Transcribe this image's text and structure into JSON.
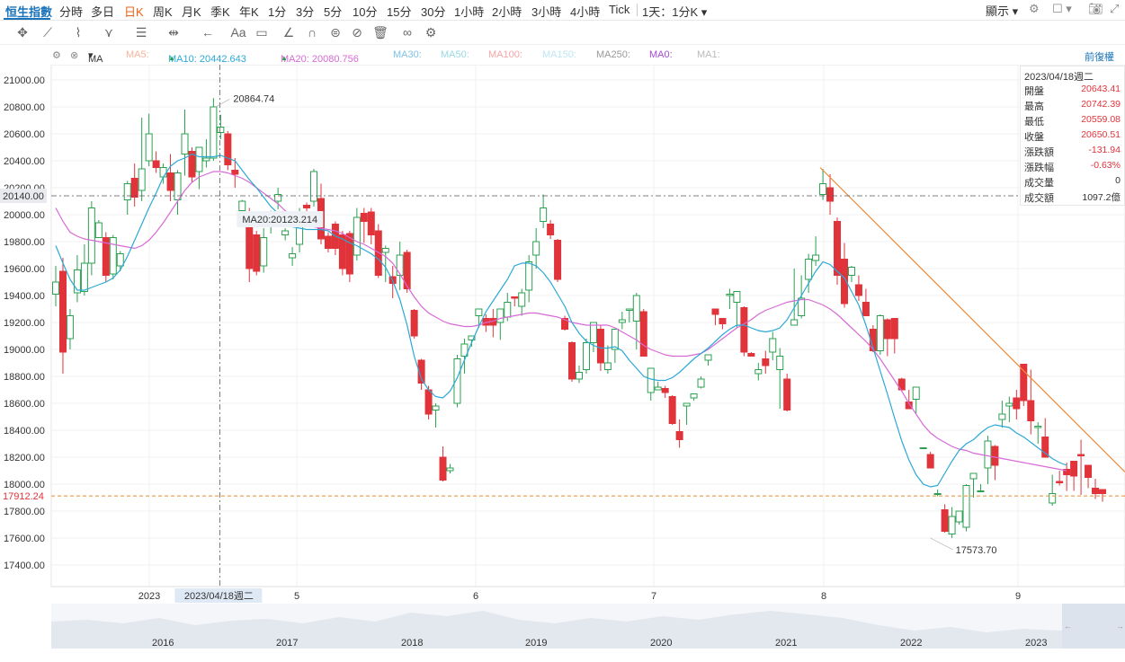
{
  "header": {
    "symbol": "恒生指數",
    "timeframes": [
      "分時",
      "多日",
      "日K",
      "周K",
      "月K",
      "季K",
      "年K",
      "1分",
      "3分",
      "5分",
      "10分",
      "15分",
      "30分",
      "1小時",
      "2小時",
      "3小時",
      "4小時",
      "Tick"
    ],
    "active_timeframe": "日K",
    "interval_select": "1天：1分K",
    "display_label": "顯示"
  },
  "ma_bar": {
    "ma_label": "MA",
    "ma5": "MA5:",
    "ma10": "MA10: 20442.643",
    "ma20": "MA20: 20080.756",
    "ma30": "MA30:",
    "ma50": "MA50:",
    "ma100": "MA100:",
    "ma150": "MA150:",
    "ma250": "MA250:",
    "ma0": "MA0:",
    "ma1": "MA1:",
    "adjust": "前復權"
  },
  "info": {
    "date": "2023/04/18週二",
    "rows": [
      {
        "k": "開盤",
        "v": "20643.41",
        "color": "#e0333a"
      },
      {
        "k": "最高",
        "v": "20742.39",
        "color": "#e0333a"
      },
      {
        "k": "最低",
        "v": "20559.08",
        "color": "#e0333a"
      },
      {
        "k": "收盤",
        "v": "20650.51",
        "color": "#e0333a"
      },
      {
        "k": "漲跌額",
        "v": "-131.94",
        "color": "#e0333a"
      },
      {
        "k": "漲跌幅",
        "v": "-0.63%",
        "color": "#e0333a"
      },
      {
        "k": "成交量",
        "v": "0",
        "color": "#333"
      },
      {
        "k": "成交額",
        "v": "1097.2億",
        "color": "#333"
      }
    ]
  },
  "navigator": {
    "years": [
      "2016",
      "2017",
      "2018",
      "2019",
      "2020",
      "2021",
      "2022",
      "2023"
    ]
  },
  "chart_data": {
    "type": "candlestick",
    "ylim": [
      17250,
      21100
    ],
    "yticks": [
      "21000.00",
      "20800.00",
      "20600.00",
      "20400.00",
      "20200.00",
      "20000.00",
      "19800.00",
      "19600.00",
      "19400.00",
      "19200.00",
      "19000.00",
      "18800.00",
      "18600.00",
      "18400.00",
      "18200.00",
      "18000.00",
      "17800.00",
      "17600.00",
      "17400.00"
    ],
    "xticks": [
      "2023",
      "5",
      "6",
      "7",
      "8",
      "9"
    ],
    "crosshair": {
      "date_label": "2023/04/18週二",
      "price_label": "20140.00",
      "ma_label": "MA20:20123.214"
    },
    "current_price": "17912.24",
    "max_label": "20864.74",
    "min_label": "17573.70",
    "colors": {
      "up": "#2ba150",
      "down": "#e0333a",
      "ma10": "#2aa9d6",
      "ma20": "#d86ad6",
      "trend": "#f08b3b",
      "current": "#e88a2a"
    },
    "candles": [
      [
        19410,
        19500,
        19620,
        19320
      ],
      [
        19580,
        18980,
        19680,
        18820
      ],
      [
        19080,
        19250,
        19300,
        19000
      ],
      [
        19420,
        19590,
        19700,
        19350
      ],
      [
        19430,
        19640,
        19780,
        19400
      ],
      [
        19640,
        20050,
        20100,
        19550
      ],
      [
        19830,
        19940,
        19960,
        19850
      ],
      [
        19830,
        19550,
        19870,
        19500
      ],
      [
        19560,
        19830,
        19850,
        19520
      ],
      [
        19620,
        19710,
        19730,
        19580
      ],
      [
        20110,
        20230,
        20250,
        20000
      ],
      [
        20270,
        20130,
        20380,
        20060
      ],
      [
        20180,
        20340,
        20720,
        20100
      ],
      [
        20400,
        20600,
        20750,
        20360
      ],
      [
        20400,
        20350,
        20470,
        20310
      ],
      [
        20280,
        20350,
        20380,
        20230
      ],
      [
        20310,
        20180,
        20450,
        20100
      ],
      [
        20110,
        20310,
        20330,
        20000
      ],
      [
        20450,
        20600,
        20780,
        20290
      ],
      [
        20470,
        20280,
        20500,
        20240
      ],
      [
        20320,
        20500,
        20420,
        20190
      ],
      [
        20400,
        20420,
        20560,
        20350
      ],
      [
        20420,
        20800,
        20865,
        20400
      ],
      [
        20610,
        20650,
        20742,
        20560
      ],
      [
        20600,
        20370,
        20620,
        20330
      ],
      [
        20330,
        20300,
        20420,
        20200
      ],
      [
        20030,
        20100,
        20110,
        19990
      ],
      [
        20010,
        19600,
        20050,
        19500
      ],
      [
        19850,
        19580,
        19880,
        19550
      ],
      [
        19620,
        19830,
        19900,
        19570
      ],
      [
        19920,
        19980,
        20030,
        19860
      ],
      [
        20100,
        20150,
        20200,
        20040
      ],
      [
        19850,
        19880,
        19900,
        19810
      ],
      [
        19680,
        19710,
        19760,
        19620
      ],
      [
        19780,
        20020,
        20050,
        19720
      ],
      [
        20070,
        20050,
        20090,
        20010
      ],
      [
        20100,
        20320,
        20340,
        20060
      ],
      [
        20120,
        19820,
        20230,
        19780
      ],
      [
        19840,
        19750,
        19870,
        19720
      ],
      [
        19930,
        19750,
        19950,
        19700
      ],
      [
        19850,
        19600,
        19880,
        19550
      ],
      [
        19860,
        19560,
        19880,
        19500
      ],
      [
        19700,
        19980,
        20050,
        19660
      ],
      [
        20010,
        19950,
        20050,
        19790
      ],
      [
        20020,
        19850,
        20050,
        19780
      ],
      [
        19880,
        19550,
        19930,
        19530
      ],
      [
        19720,
        19750,
        19770,
        19500
      ],
      [
        19540,
        19490,
        19620,
        19380
      ],
      [
        19550,
        19700,
        19800,
        19440
      ],
      [
        19720,
        19450,
        19740,
        19420
      ],
      [
        19290,
        19100,
        19300,
        19080
      ],
      [
        18920,
        18750,
        18930,
        18700
      ],
      [
        18700,
        18520,
        18730,
        18480
      ],
      [
        18550,
        18580,
        18600,
        18420
      ],
      [
        18200,
        18030,
        18280,
        18020
      ],
      [
        18100,
        18120,
        18150,
        18080
      ],
      [
        18600,
        18930,
        18960,
        18570
      ],
      [
        18950,
        19040,
        19080,
        18820
      ],
      [
        19070,
        19100,
        19100,
        19020
      ],
      [
        19250,
        19300,
        19290,
        19160
      ],
      [
        19230,
        19180,
        19260,
        19130
      ],
      [
        19230,
        19180,
        19300,
        19090
      ],
      [
        19200,
        19300,
        19270,
        19070
      ],
      [
        19240,
        19350,
        19420,
        19210
      ],
      [
        19390,
        19380,
        19360,
        19320
      ],
      [
        19320,
        19420,
        19450,
        19250
      ],
      [
        19440,
        19650,
        19700,
        19350
      ],
      [
        19700,
        19800,
        19900,
        19600
      ],
      [
        19950,
        20050,
        20150,
        19900
      ],
      [
        19930,
        19850,
        19960,
        19820
      ],
      [
        19810,
        19520,
        19820,
        19500
      ],
      [
        19230,
        19150,
        19250,
        19140
      ],
      [
        19050,
        18780,
        19060,
        18760
      ],
      [
        18780,
        18830,
        18880,
        18750
      ],
      [
        18850,
        19050,
        19080,
        18820
      ],
      [
        19050,
        19200,
        19100,
        18980
      ],
      [
        19150,
        18900,
        19180,
        18840
      ],
      [
        18850,
        18900,
        19030,
        18820
      ],
      [
        19000,
        19150,
        19100,
        18900
      ],
      [
        19200,
        19220,
        19280,
        19150
      ],
      [
        19290,
        19300,
        19290,
        19200
      ],
      [
        19210,
        19400,
        19420,
        19000
      ],
      [
        19280,
        18950,
        19300,
        18950
      ],
      [
        18680,
        18860,
        18860,
        18620
      ],
      [
        18700,
        18720,
        18760,
        18700
      ],
      [
        18710,
        18680,
        18730,
        18640
      ],
      [
        18650,
        18450,
        18660,
        18440
      ],
      [
        18390,
        18330,
        18480,
        18270
      ],
      [
        18580,
        18600,
        18600,
        18440
      ],
      [
        18640,
        18670,
        18650,
        18620
      ],
      [
        18720,
        18780,
        18800,
        18710
      ],
      [
        18920,
        18960,
        18940,
        18880
      ],
      [
        19300,
        19260,
        19230,
        19180
      ],
      [
        19230,
        19190,
        19230,
        19150
      ],
      [
        19400,
        19410,
        19450,
        19300
      ],
      [
        19350,
        19430,
        19420,
        19160
      ],
      [
        19310,
        18980,
        19320,
        18950
      ],
      [
        18970,
        18950,
        18980,
        18950
      ],
      [
        18820,
        18850,
        18900,
        18770
      ],
      [
        18930,
        18880,
        18990,
        18820
      ],
      [
        18980,
        19080,
        19130,
        18920
      ],
      [
        18850,
        18950,
        19010,
        18560
      ],
      [
        18780,
        18550,
        18820,
        18540
      ],
      [
        19180,
        19220,
        19600,
        19200
      ],
      [
        19250,
        19380,
        19550,
        19230
      ],
      [
        19520,
        19670,
        19710,
        19420
      ],
      [
        19660,
        19700,
        19840,
        19620
      ],
      [
        20150,
        20230,
        20340,
        20110
      ],
      [
        20200,
        20100,
        20300,
        20000
      ],
      [
        19950,
        19550,
        19980,
        19480
      ],
      [
        19670,
        19340,
        19790,
        19310
      ],
      [
        19550,
        19610,
        19620,
        19500
      ],
      [
        19480,
        19400,
        19550,
        19360
      ],
      [
        19350,
        19250,
        19450,
        19250
      ],
      [
        19150,
        18990,
        19180,
        18980
      ],
      [
        18990,
        19250,
        19260,
        18960
      ],
      [
        19220,
        19080,
        19230,
        18950
      ],
      [
        19230,
        19080,
        19140,
        18970
      ],
      [
        18780,
        18700,
        18790,
        18750
      ],
      [
        18610,
        18560,
        18700,
        18590
      ],
      [
        18630,
        18720,
        18690,
        18520
      ],
      [
        18270,
        18270,
        18270,
        18260
      ],
      [
        18220,
        18120,
        18240,
        18120
      ],
      [
        17930,
        17930,
        17960,
        17910
      ],
      [
        17810,
        17650,
        17850,
        17640
      ],
      [
        17630,
        17760,
        17830,
        17600
      ],
      [
        17720,
        17800,
        17780,
        17700
      ],
      [
        17680,
        17990,
        18000,
        17650
      ],
      [
        18040,
        18080,
        18050,
        17900
      ],
      [
        17950,
        17950,
        18000,
        17950
      ],
      [
        18120,
        18320,
        18360,
        18000
      ],
      [
        18280,
        18140,
        18290,
        18030
      ],
      [
        18480,
        18520,
        18620,
        18420
      ],
      [
        18580,
        18600,
        18650,
        18460
      ],
      [
        18640,
        18560,
        18700,
        18480
      ],
      [
        18890,
        18620,
        18870,
        18580
      ],
      [
        18620,
        18470,
        18850,
        18370
      ],
      [
        18420,
        18430,
        18460,
        18300
      ],
      [
        18350,
        18200,
        18490,
        18200
      ],
      [
        17860,
        17930,
        18070,
        17840
      ],
      [
        18020,
        18010,
        18100,
        17990
      ],
      [
        18110,
        18070,
        18160,
        17950
      ],
      [
        18170,
        18060,
        18130,
        17950
      ],
      [
        18220,
        18210,
        18330,
        17920
      ],
      [
        18140,
        18050,
        18130,
        17970
      ],
      [
        17970,
        17930,
        18040,
        17890
      ],
      [
        17960,
        17930,
        17940,
        17870
      ]
    ],
    "ma10": [
      19770,
      19640,
      19520,
      19440,
      19440,
      19460,
      19480,
      19500,
      19530,
      19590,
      19690,
      19810,
      19930,
      20050,
      20160,
      20280,
      20360,
      20400,
      20420,
      20450,
      20430,
      20430,
      20430,
      20440,
      20420,
      20400,
      20330,
      20260,
      20200,
      20130,
      20060,
      20010,
      19950,
      19910,
      19900,
      19890,
      19890,
      19890,
      19880,
      19840,
      19820,
      19790,
      19770,
      19740,
      19710,
      19670,
      19610,
      19510,
      19370,
      19180,
      18950,
      18780,
      18700,
      18650,
      18640,
      18690,
      18790,
      18920,
      19050,
      19170,
      19280,
      19360,
      19440,
      19520,
      19620,
      19640,
      19640,
      19620,
      19570,
      19500,
      19410,
      19320,
      19200,
      19120,
      19060,
      19030,
      19010,
      19010,
      19020,
      18990,
      18920,
      18860,
      18800,
      18780,
      18770,
      18770,
      18790,
      18830,
      18880,
      18930,
      18970,
      19010,
      19060,
      19110,
      19150,
      19180,
      19180,
      19160,
      19140,
      19130,
      19140,
      19160,
      19220,
      19310,
      19400,
      19490,
      19580,
      19650,
      19630,
      19580,
      19530,
      19430,
      19330,
      19180,
      19010,
      18840,
      18670,
      18490,
      18320,
      18180,
      18070,
      18000,
      17980,
      17990,
      18080,
      18170,
      18250,
      18300,
      18330,
      18380,
      18420,
      18440,
      18430,
      18420,
      18380,
      18350,
      18310,
      18270,
      18230,
      18190,
      18160,
      18140
    ],
    "ma20": [
      20050,
      19950,
      19870,
      19840,
      19820,
      19810,
      19800,
      19790,
      19780,
      19770,
      19760,
      19750,
      19770,
      19810,
      19870,
      19940,
      20020,
      20100,
      20180,
      20240,
      20280,
      20300,
      20320,
      20320,
      20310,
      20290,
      20270,
      20240,
      20200,
      20160,
      20120,
      20080,
      20030,
      19990,
      19960,
      19930,
      19910,
      19900,
      19890,
      19880,
      19860,
      19830,
      19800,
      19780,
      19750,
      19720,
      19690,
      19640,
      19560,
      19470,
      19390,
      19320,
      19270,
      19240,
      19210,
      19190,
      19180,
      19170,
      19170,
      19180,
      19200,
      19210,
      19230,
      19240,
      19250,
      19260,
      19270,
      19270,
      19260,
      19250,
      19240,
      19220,
      19200,
      19190,
      19180,
      19180,
      19180,
      19180,
      19160,
      19130,
      19100,
      19070,
      19030,
      19000,
      18980,
      18960,
      18950,
      18950,
      18950,
      18960,
      18970,
      19000,
      19040,
      19080,
      19120,
      19160,
      19190,
      19220,
      19260,
      19290,
      19310,
      19330,
      19350,
      19360,
      19370,
      19370,
      19350,
      19330,
      19300,
      19260,
      19210,
      19160,
      19110,
      19060,
      19000,
      18930,
      18850,
      18770,
      18690,
      18600,
      18520,
      18440,
      18380,
      18340,
      18310,
      18280,
      18260,
      18250,
      18230,
      18220,
      18210,
      18200,
      18190,
      18180,
      18170,
      18160,
      18150,
      18140,
      18130,
      18120,
      18110,
      18100
    ]
  }
}
